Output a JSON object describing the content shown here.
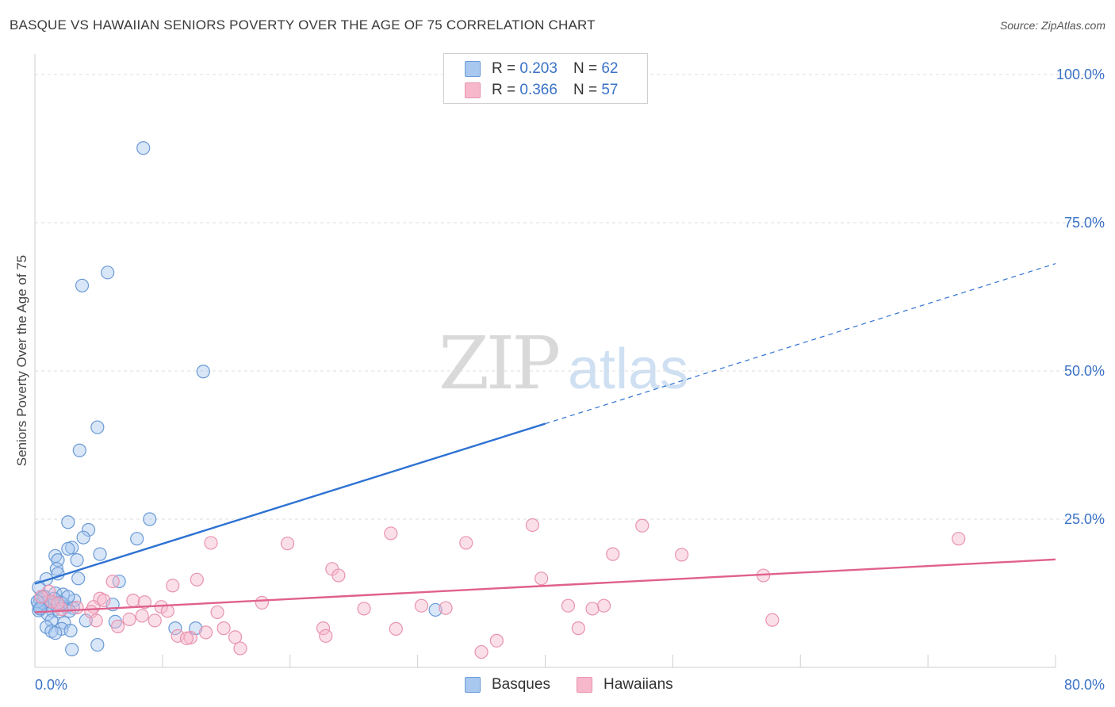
{
  "title": "BASQUE VS HAWAIIAN SENIORS POVERTY OVER THE AGE OF 75 CORRELATION CHART",
  "source": "Source: ZipAtlas.com",
  "watermark": {
    "zip": "ZIP",
    "atlas": "atlas"
  },
  "legend": {
    "r_label": "R =",
    "n_label": "N =",
    "rows": [
      {
        "r": "0.203",
        "n": "62"
      },
      {
        "r": "0.366",
        "n": "57"
      }
    ]
  },
  "colors": {
    "basque_fill": "#a8c8f0",
    "basque_stroke": "#6a9ad6",
    "basque_line": "#2e72d2",
    "hawaiian_fill": "#f7b8cb",
    "hawaiian_stroke": "#e893ae",
    "hawaiian_line": "#e0608e",
    "tick_text": "#3a72c6",
    "grid": "#dcdcdc"
  },
  "chart_data": {
    "type": "scatter",
    "xlabel": "",
    "ylabel": "Seniors Poverty Over the Age of 75",
    "xlim": [
      0,
      80
    ],
    "ylim": [
      0,
      100
    ],
    "x_tick_labels": [
      {
        "value": 0,
        "label": "0.0%"
      },
      {
        "value": 80,
        "label": "80.0%"
      }
    ],
    "y_tick_labels": [
      {
        "value": 25,
        "label": "25.0%"
      },
      {
        "value": 50,
        "label": "50.0%"
      },
      {
        "value": 75,
        "label": "75.0%"
      },
      {
        "value": 100,
        "label": "100.0%"
      }
    ],
    "series": [
      {
        "name": "Basques",
        "r": 0.203,
        "n": 62,
        "trend": {
          "x_solid": [
            0,
            40
          ],
          "y_solid": [
            14.1,
            41.1
          ],
          "x_dashed": [
            40,
            80
          ],
          "y_dashed": [
            41.1,
            68.1
          ]
        },
        "points": [
          [
            8.5,
            87.6
          ],
          [
            5.7,
            66.6
          ],
          [
            3.7,
            64.4
          ],
          [
            13.2,
            49.9
          ],
          [
            4.9,
            40.5
          ],
          [
            3.5,
            36.6
          ],
          [
            9.0,
            25.0
          ],
          [
            2.6,
            24.5
          ],
          [
            4.2,
            23.2
          ],
          [
            8.0,
            21.7
          ],
          [
            3.8,
            21.9
          ],
          [
            2.9,
            20.2
          ],
          [
            2.6,
            20.0
          ],
          [
            5.1,
            19.1
          ],
          [
            1.6,
            18.8
          ],
          [
            1.8,
            18.1
          ],
          [
            3.3,
            18.1
          ],
          [
            1.7,
            16.6
          ],
          [
            1.8,
            15.8
          ],
          [
            3.4,
            15.0
          ],
          [
            0.9,
            14.9
          ],
          [
            6.6,
            14.5
          ],
          [
            0.3,
            13.5
          ],
          [
            1.6,
            12.5
          ],
          [
            2.2,
            12.3
          ],
          [
            0.7,
            11.8
          ],
          [
            0.4,
            11.4
          ],
          [
            1.1,
            11.2
          ],
          [
            3.1,
            11.3
          ],
          [
            2.0,
            11.0
          ],
          [
            0.3,
            10.6
          ],
          [
            1.2,
            10.4
          ],
          [
            0.5,
            10.0
          ],
          [
            2.5,
            10.2
          ],
          [
            3.0,
            10.0
          ],
          [
            6.1,
            10.6
          ],
          [
            0.3,
            9.6
          ],
          [
            1.4,
            9.5
          ],
          [
            2.7,
            9.5
          ],
          [
            1.0,
            9.0
          ],
          [
            0.6,
            10.9
          ],
          [
            2.1,
            10.8
          ],
          [
            31.4,
            9.7
          ],
          [
            4.0,
            7.9
          ],
          [
            1.3,
            7.9
          ],
          [
            2.3,
            7.5
          ],
          [
            0.9,
            6.8
          ],
          [
            2.1,
            6.5
          ],
          [
            6.3,
            7.7
          ],
          [
            11.0,
            6.6
          ],
          [
            12.6,
            6.6
          ],
          [
            1.3,
            6.1
          ],
          [
            1.6,
            5.8
          ],
          [
            2.8,
            6.2
          ],
          [
            4.9,
            3.8
          ],
          [
            2.9,
            3.0
          ],
          [
            0.7,
            12.0
          ],
          [
            1.5,
            11.6
          ],
          [
            0.2,
            11.1
          ],
          [
            0.4,
            9.9
          ],
          [
            1.9,
            9.4
          ],
          [
            2.6,
            11.9
          ]
        ]
      },
      {
        "name": "Hawaiians",
        "r": 0.366,
        "n": 57,
        "trend": {
          "x_solid": [
            0,
            80
          ],
          "y_solid": [
            9.3,
            18.2
          ]
        },
        "points": [
          [
            72.4,
            21.7
          ],
          [
            47.6,
            23.9
          ],
          [
            39.0,
            24.0
          ],
          [
            27.9,
            22.6
          ],
          [
            13.8,
            21.0
          ],
          [
            19.8,
            20.9
          ],
          [
            33.8,
            21.0
          ],
          [
            45.3,
            19.1
          ],
          [
            50.7,
            19.0
          ],
          [
            23.3,
            16.6
          ],
          [
            23.8,
            15.5
          ],
          [
            57.1,
            15.5
          ],
          [
            39.7,
            15.0
          ],
          [
            12.7,
            14.8
          ],
          [
            6.1,
            14.5
          ],
          [
            10.8,
            13.8
          ],
          [
            5.1,
            11.6
          ],
          [
            5.4,
            11.3
          ],
          [
            7.7,
            11.3
          ],
          [
            8.6,
            11.0
          ],
          [
            17.8,
            10.9
          ],
          [
            30.3,
            10.4
          ],
          [
            4.6,
            10.2
          ],
          [
            3.3,
            10.1
          ],
          [
            44.6,
            10.4
          ],
          [
            9.9,
            10.2
          ],
          [
            41.8,
            10.4
          ],
          [
            43.7,
            9.9
          ],
          [
            32.2,
            10.0
          ],
          [
            25.8,
            9.9
          ],
          [
            10.4,
            9.5
          ],
          [
            14.3,
            9.3
          ],
          [
            1.1,
            12.8
          ],
          [
            2.1,
            9.8
          ],
          [
            4.4,
            9.4
          ],
          [
            8.4,
            8.7
          ],
          [
            1.3,
            11.1
          ],
          [
            7.4,
            8.1
          ],
          [
            9.4,
            7.9
          ],
          [
            4.8,
            7.9
          ],
          [
            57.8,
            8.0
          ],
          [
            6.5,
            6.9
          ],
          [
            14.8,
            6.6
          ],
          [
            22.6,
            6.6
          ],
          [
            28.3,
            6.5
          ],
          [
            42.6,
            6.6
          ],
          [
            13.4,
            5.9
          ],
          [
            22.8,
            5.3
          ],
          [
            15.7,
            5.1
          ],
          [
            11.2,
            5.3
          ],
          [
            12.2,
            5.0
          ],
          [
            11.9,
            4.9
          ],
          [
            36.2,
            4.5
          ],
          [
            16.1,
            3.2
          ],
          [
            35.0,
            2.6
          ],
          [
            1.8,
            10.8
          ],
          [
            0.5,
            11.9
          ]
        ]
      }
    ]
  }
}
